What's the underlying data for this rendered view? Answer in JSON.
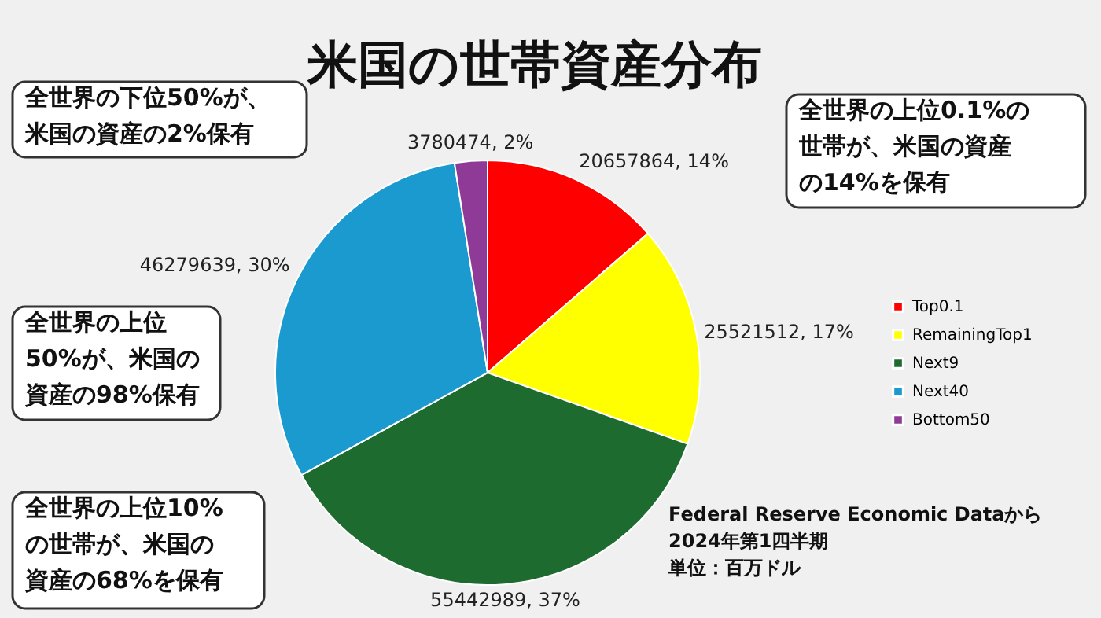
{
  "chart_data": {
    "type": "pie",
    "title": "米国の世帯資産分布",
    "categories": [
      "Top0.1",
      "RemainingTop1",
      "Next9",
      "Next40",
      "Bottom50"
    ],
    "values": [
      20657864,
      25521512,
      55442989,
      46279639,
      3780474
    ],
    "colors": [
      "#ff0000",
      "#ffff00",
      "#1e6b30",
      "#1b9ad0",
      "#8e3a96"
    ],
    "value_labels": [
      "20657864, 14%",
      "25521512, 17%",
      "55442989, 37%",
      "46279639, 30%",
      "3780474, 2%"
    ],
    "legend": "right",
    "annotations": [
      "全世界の下位50%が、米国の資産の2%保有",
      "全世界の上位0.1%の世帯が、米国の資産の14%を保有",
      "全世界の上位50%が、米国の資産の98%保有",
      "全世界の上位10%の世帯が、米国の資産の68%を保有",
      "Federal Reserve Economic Dataから2024年第1四半期単位：百万ドル"
    ]
  }
}
